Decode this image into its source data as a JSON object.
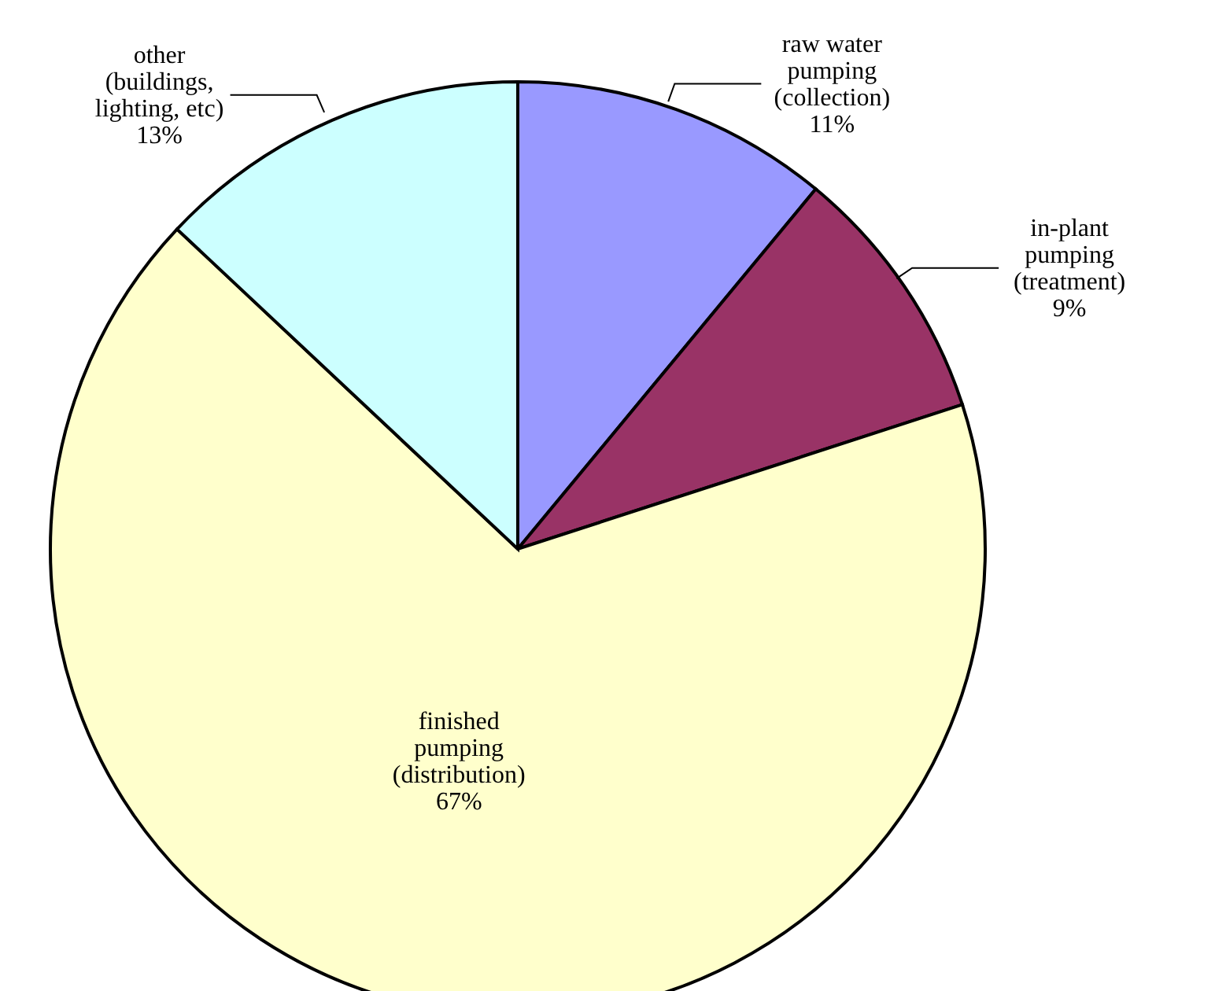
{
  "chart_data": {
    "type": "pie",
    "categories": [
      "raw water pumping (collection)",
      "in-plant pumping (treatment)",
      "finished pumping (distribution)",
      "other (buildings, lighting, etc)"
    ],
    "values": [
      11,
      9,
      67,
      13
    ],
    "value_labels": [
      "11%",
      "9%",
      "67%",
      "13%"
    ],
    "colors": [
      "#9999ff",
      "#993366",
      "#ffffcc",
      "#ccffff"
    ],
    "legend": false
  }
}
